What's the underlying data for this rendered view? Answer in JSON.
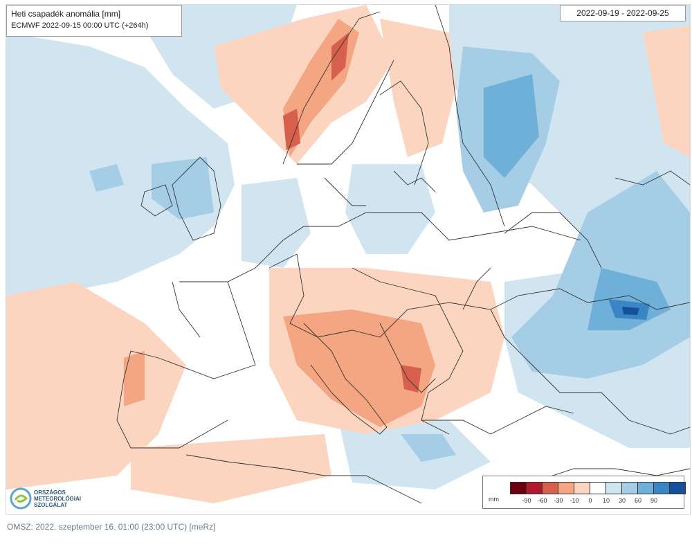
{
  "map": {
    "title": "Heti csapadék anomália [mm]",
    "subtitle": "ECMWF 2022-09-15 00:00 UTC (+264h)",
    "date_range": "2022-09-19 - 2022-09-25",
    "region": "Europe"
  },
  "legend": {
    "unit": "mm",
    "swatches": [
      {
        "color": "#6b0010"
      },
      {
        "color": "#b2182b"
      },
      {
        "color": "#d6604d"
      },
      {
        "color": "#f4a582"
      },
      {
        "color": "#fbd5c0"
      },
      {
        "color": "#ffffff"
      },
      {
        "color": "#d1e5f0"
      },
      {
        "color": "#a6cde6"
      },
      {
        "color": "#6fb0d8"
      },
      {
        "color": "#3a86c4"
      },
      {
        "color": "#15519a"
      }
    ],
    "tick_labels": [
      "-90",
      "-60",
      "-30",
      "-10",
      "0",
      "10",
      "30",
      "60",
      "90"
    ]
  },
  "logo": {
    "line1": "ORSZÁGOS",
    "line2": "METEOROLÓGIAI",
    "line3": "SZOLGÁLAT"
  },
  "footer": {
    "text": "OMSZ: 2022. szeptember 16. 01:00 (23:00  UTC)  [meRz]"
  },
  "colors": {
    "dry_light": "#fbd5c0",
    "dry_medium": "#f4a582",
    "dry_strong": "#d6604d",
    "wet_light": "#d1e5f0",
    "wet_medium": "#a6cde6",
    "wet_strong": "#6fb0d8",
    "wet_max": "#15519a",
    "borders": "#333333"
  }
}
